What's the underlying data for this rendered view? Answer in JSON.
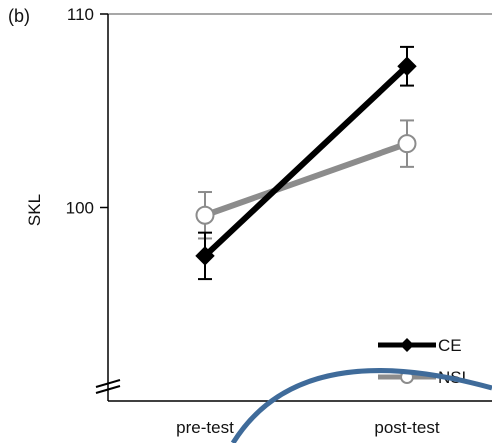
{
  "panel_label": "(b)",
  "chart_data": {
    "type": "line",
    "title": "",
    "xlabel": "",
    "ylabel": "SKL",
    "categories": [
      "pre-test",
      "post-test"
    ],
    "yticks": [
      100,
      110
    ],
    "ylim": [
      90,
      110
    ],
    "axis_break": true,
    "grid": false,
    "legend_position": "bottom-right",
    "series": [
      {
        "name": "CE",
        "values": [
          97.5,
          107.3
        ],
        "error": [
          1.2,
          1.0
        ],
        "color": "#000000",
        "marker": "filled-diamond"
      },
      {
        "name": "NSL",
        "values": [
          99.6,
          103.3
        ],
        "error": [
          1.2,
          1.2
        ],
        "color": "#8c8c8c",
        "marker": "open-circle"
      }
    ]
  },
  "colors": {
    "overlay_arc": "#3f6b9a",
    "axis": "#000000",
    "frame": "#8a8a8a"
  }
}
